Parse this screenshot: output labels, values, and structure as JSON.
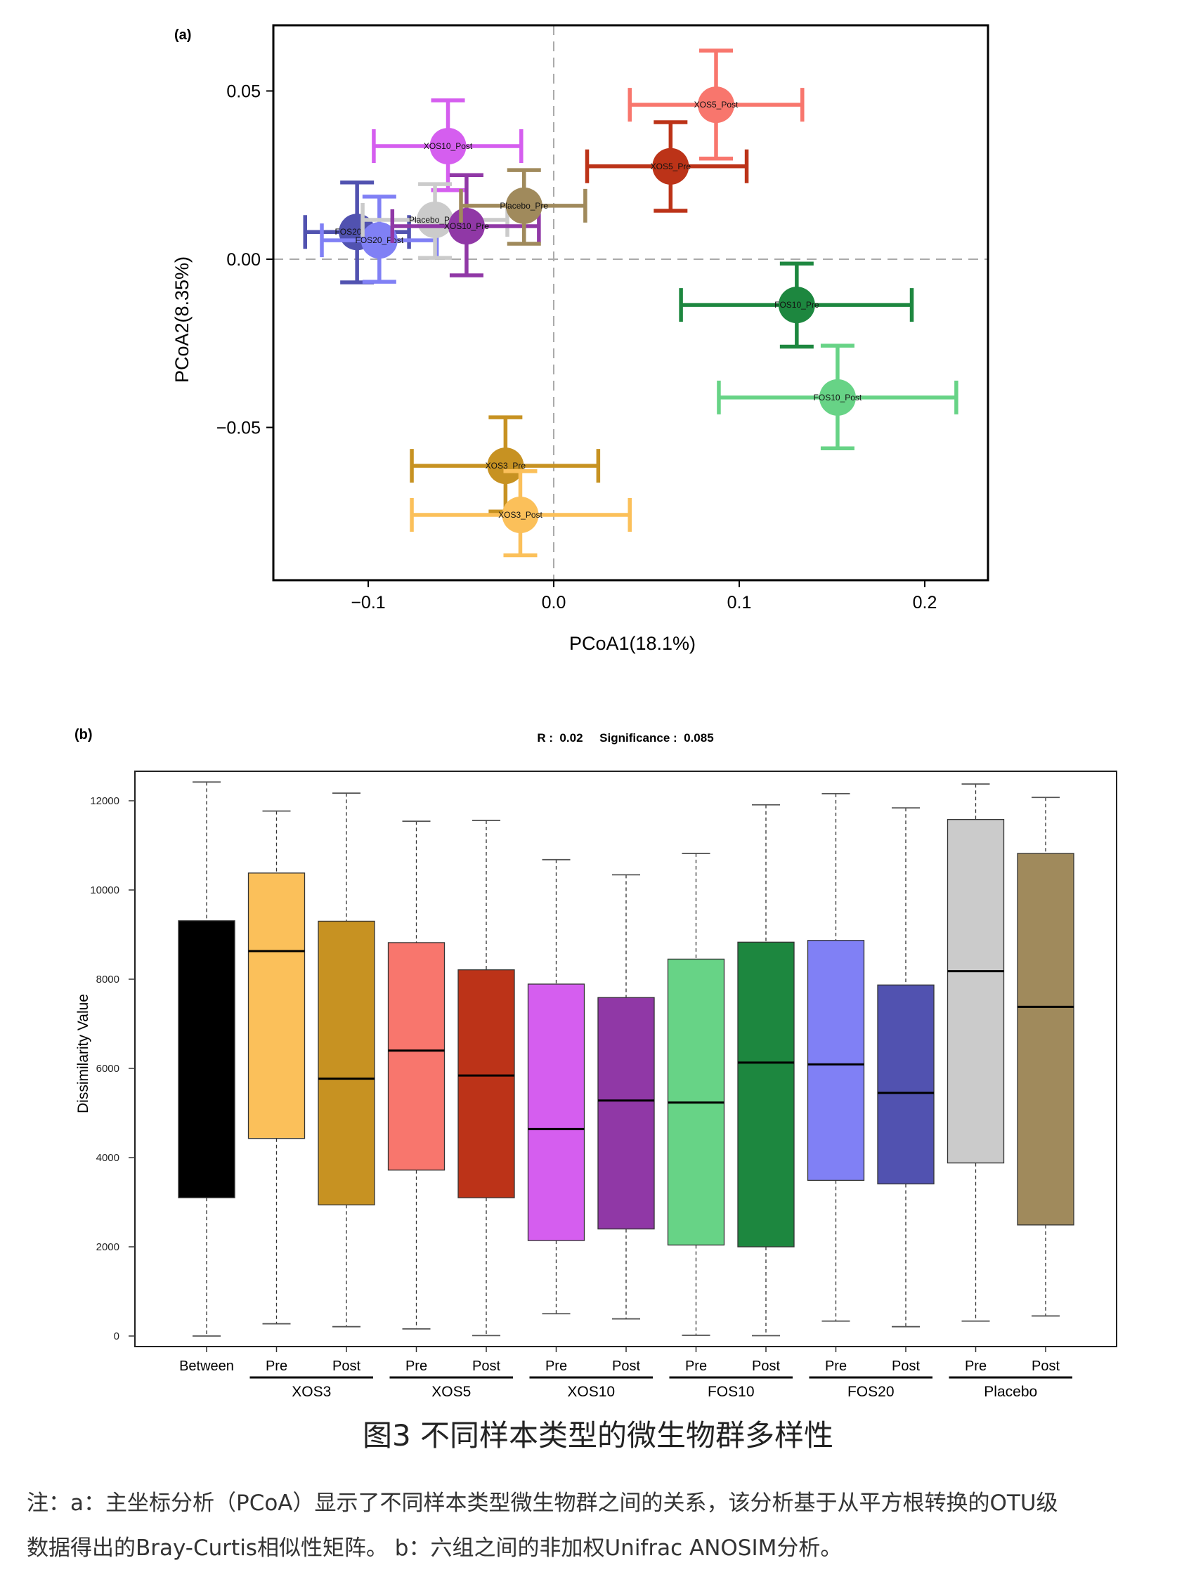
{
  "figure": {
    "caption_title": "图3 不同样本类型的微生物群多样性",
    "note_line1": "注：a：主坐标分析（PCoA）显示了不同样本类型微生物群之间的关系，该分析基于从平方根转换的OTU级",
    "note_line2": "数据得出的Bray-Curtis相似性矩阵。 b：六组之间的非加权Unifrac ANOSIM分析。"
  },
  "chart_data": [
    {
      "panel_label": "(a)",
      "type": "scatter",
      "title": "",
      "xlabel": "PCoA1(18.1%)",
      "ylabel": "PCoA2(8.35%)",
      "xlim": [
        -0.15,
        0.235
      ],
      "ylim": [
        -0.095,
        0.07
      ],
      "xticks": [
        -0.1,
        0.0,
        0.1,
        0.2
      ],
      "xtick_labels": [
        "−0.1",
        "0.0",
        "0.1",
        "0.2"
      ],
      "yticks": [
        0.05,
        0.0,
        -0.05
      ],
      "ytick_labels": [
        "0.05",
        "0.00",
        "−0.05"
      ],
      "reference_lines": {
        "x": 0,
        "y": 0,
        "style": "dashed"
      },
      "grid": false,
      "points": [
        {
          "label": "XOS5_Post",
          "color": "#F8766D",
          "x": 0.0875,
          "y": 0.0459,
          "x_err": [
            0.041,
            0.134
          ],
          "y_err": [
            0.0299,
            0.062
          ]
        },
        {
          "label": "XOS10_Post",
          "color": "#D55EEF",
          "x": -0.057,
          "y": 0.0336,
          "x_err": [
            -0.097,
            -0.0175
          ],
          "y_err": [
            0.0205,
            0.0472
          ]
        },
        {
          "label": "XOS5_Pre",
          "color": "#BC3318",
          "x": 0.063,
          "y": 0.0276,
          "x_err": [
            0.018,
            0.104
          ],
          "y_err": [
            0.0144,
            0.0407
          ]
        },
        {
          "label": "FOS20_Pre",
          "color": "#5152B0",
          "x": -0.106,
          "y": 0.0081,
          "x_err": [
            -0.134,
            -0.078
          ],
          "y_err": [
            -0.0069,
            0.0228
          ]
        },
        {
          "label": "FOS20_Post",
          "color": "#8080F5",
          "x": -0.094,
          "y": 0.0056,
          "x_err": [
            -0.125,
            -0.063
          ],
          "y_err": [
            -0.0067,
            0.0186
          ]
        },
        {
          "label": "Placebo_Post",
          "color": "#CBCBCB",
          "x": -0.064,
          "y": 0.0117,
          "x_err": [
            -0.103,
            -0.025
          ],
          "y_err": [
            0.0004,
            0.0223
          ]
        },
        {
          "label": "XOS10_Pre",
          "color": "#9038A6",
          "x": -0.047,
          "y": 0.0098,
          "x_err": [
            -0.087,
            -0.008
          ],
          "y_err": [
            -0.0048,
            0.025
          ]
        },
        {
          "label": "Placebo_Pre",
          "color": "#A08A5C",
          "x": -0.016,
          "y": 0.0159,
          "x_err": [
            -0.05,
            0.017
          ],
          "y_err": [
            0.0046,
            0.0265
          ]
        },
        {
          "label": "FOS10_Pre",
          "color": "#1D873F",
          "x": 0.131,
          "y": -0.0136,
          "x_err": [
            0.0686,
            0.193
          ],
          "y_err": [
            -0.026,
            -0.0013
          ]
        },
        {
          "label": "FOS10_Post",
          "color": "#67D386",
          "x": 0.153,
          "y": -0.0411,
          "x_err": [
            0.089,
            0.217
          ],
          "y_err": [
            -0.0562,
            -0.0257
          ]
        },
        {
          "label": "XOS3_Pre",
          "color": "#C79222",
          "x": -0.026,
          "y": -0.0614,
          "x_err": [
            -0.0765,
            0.024
          ],
          "y_err": [
            -0.075,
            -0.047
          ]
        },
        {
          "label": "XOS3_Post",
          "color": "#FBC05A",
          "x": -0.018,
          "y": -0.076,
          "x_err": [
            -0.0765,
            0.041
          ],
          "y_err": [
            -0.088,
            -0.063
          ]
        }
      ]
    },
    {
      "panel_label": "(b)",
      "type": "box",
      "title": "R :  0.02     Significance :  0.085",
      "xlabel": "",
      "ylabel": "Dissimilarity Value",
      "ylim": [
        -700,
        12800
      ],
      "yticks": [
        0,
        2000,
        4000,
        6000,
        8000,
        10000,
        12000
      ],
      "grid": false,
      "categories": [
        "Between",
        "Pre",
        "Post",
        "Pre",
        "Post",
        "Pre",
        "Post",
        "Pre",
        "Post",
        "Pre",
        "Post",
        "Pre",
        "Post"
      ],
      "groups": [
        {
          "label": "XOS3",
          "members": [
            1,
            2
          ]
        },
        {
          "label": "XOS5",
          "members": [
            3,
            4
          ]
        },
        {
          "label": "XOS10",
          "members": [
            5,
            6
          ]
        },
        {
          "label": "FOS10",
          "members": [
            7,
            8
          ]
        },
        {
          "label": "FOS20",
          "members": [
            9,
            10
          ]
        },
        {
          "label": "Placebo",
          "members": [
            11,
            12
          ]
        }
      ],
      "series": [
        {
          "name": "Between",
          "color": "#000000",
          "min": 0,
          "q1": 3100,
          "median": null,
          "q3": 9310,
          "max": 12420
        },
        {
          "name": "XOS3_Pre",
          "color": "#FBC05A",
          "min": 275,
          "q1": 4430,
          "median": 8630,
          "q3": 10380,
          "max": 11770
        },
        {
          "name": "XOS3_Post",
          "color": "#C79222",
          "min": 210,
          "q1": 2940,
          "median": 5770,
          "q3": 9300,
          "max": 12170
        },
        {
          "name": "XOS5_Pre",
          "color": "#F8766D",
          "min": 160,
          "q1": 3720,
          "median": 6400,
          "q3": 8820,
          "max": 11540
        },
        {
          "name": "XOS5_Post",
          "color": "#BC3318",
          "min": 10,
          "q1": 3100,
          "median": 5840,
          "q3": 8210,
          "max": 11560
        },
        {
          "name": "XOS10_Pre",
          "color": "#D55EEF",
          "min": 500,
          "q1": 2140,
          "median": 4640,
          "q3": 7890,
          "max": 10680
        },
        {
          "name": "XOS10_Post",
          "color": "#9038A6",
          "min": 385,
          "q1": 2400,
          "median": 5280,
          "q3": 7590,
          "max": 10340
        },
        {
          "name": "FOS10_Pre",
          "color": "#67D386",
          "min": 17,
          "q1": 2040,
          "median": 5235,
          "q3": 8450,
          "max": 10820
        },
        {
          "name": "FOS10_Post",
          "color": "#1D873F",
          "min": 8,
          "q1": 2000,
          "median": 6130,
          "q3": 8830,
          "max": 11910
        },
        {
          "name": "FOS20_Pre",
          "color": "#8080F5",
          "min": 335,
          "q1": 3490,
          "median": 6090,
          "q3": 8870,
          "max": 12160
        },
        {
          "name": "FOS20_Post",
          "color": "#5152B0",
          "min": 210,
          "q1": 3410,
          "median": 5450,
          "q3": 7870,
          "max": 11840
        },
        {
          "name": "Placebo_Pre",
          "color": "#CBCBCB",
          "min": 335,
          "q1": 3880,
          "median": 8180,
          "q3": 11580,
          "max": 12375
        },
        {
          "name": "Placebo_Post",
          "color": "#A08A5C",
          "min": 450,
          "q1": 2490,
          "median": 7380,
          "q3": 10820,
          "max": 12075
        }
      ]
    }
  ]
}
